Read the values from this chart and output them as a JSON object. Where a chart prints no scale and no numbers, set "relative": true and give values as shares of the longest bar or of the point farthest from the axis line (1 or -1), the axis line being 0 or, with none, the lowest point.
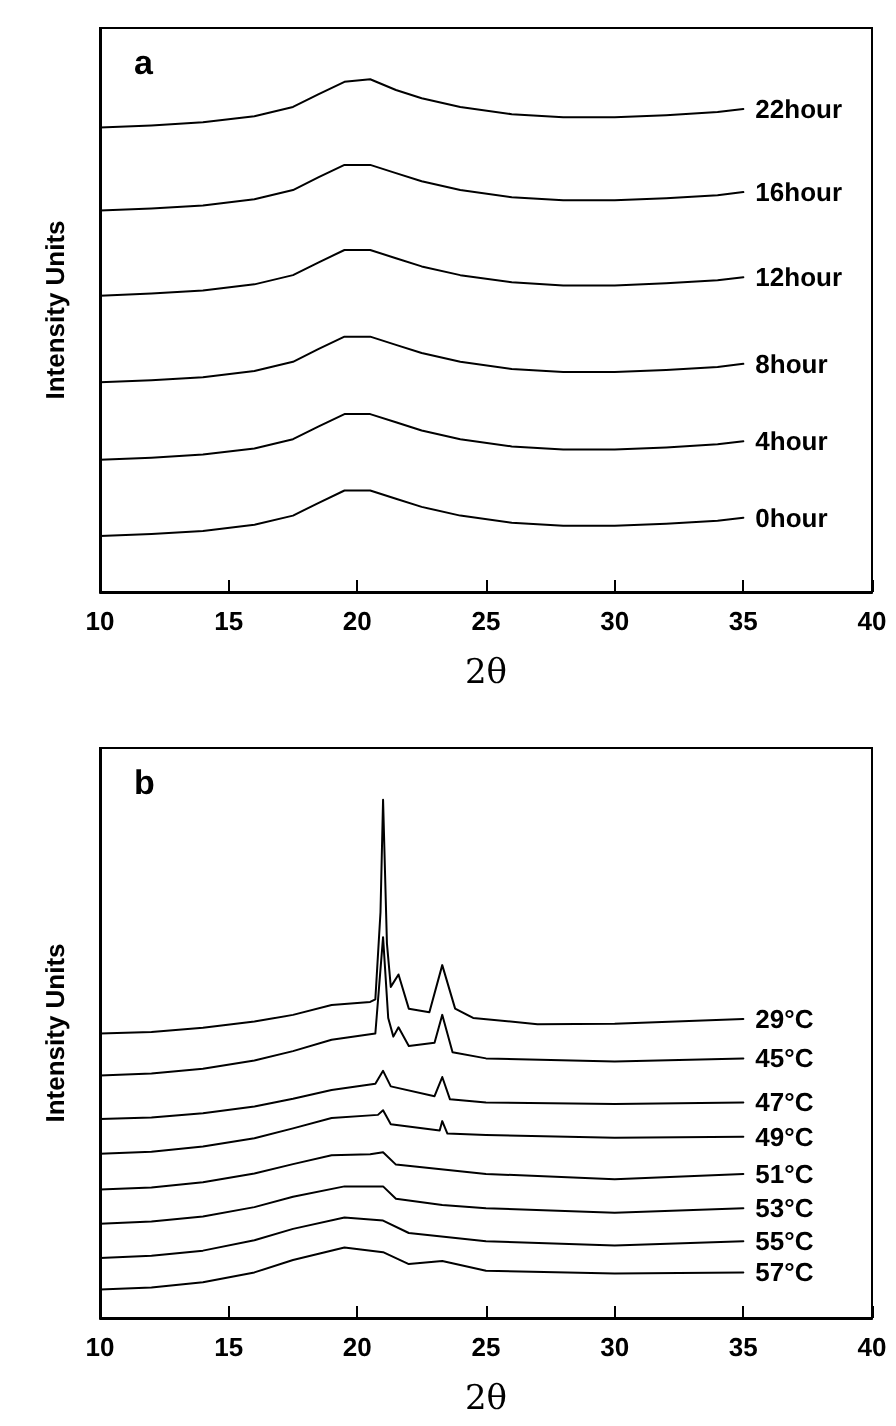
{
  "chart_data": [
    {
      "type": "line",
      "title": "a",
      "xlabel": "2θ",
      "ylabel": "Intensity Units",
      "relative": true,
      "xlim": [
        10,
        40
      ],
      "xticks": [
        10,
        15,
        20,
        25,
        30,
        35,
        40
      ],
      "grid": false,
      "legend": false,
      "marker": "none",
      "line_style": "solid",
      "series": [
        {
          "name": "22hour",
          "color": "#000000",
          "x": [
            10,
            12,
            14,
            16,
            17.5,
            18.5,
            19.5,
            20.5,
            21.5,
            22.5,
            24,
            26,
            28,
            30,
            32,
            34,
            35
          ],
          "values": [
            0.906,
            0.91,
            0.916,
            0.928,
            0.946,
            0.971,
            0.995,
            1.0,
            0.979,
            0.963,
            0.946,
            0.932,
            0.926,
            0.926,
            0.93,
            0.936,
            0.942
          ]
        },
        {
          "name": "16hour",
          "color": "#000000",
          "x": [
            10,
            12,
            14,
            16,
            17.5,
            18.5,
            19.5,
            20.5,
            21.5,
            22.5,
            24,
            26,
            28,
            30,
            32,
            34,
            35
          ],
          "values": [
            0.744,
            0.748,
            0.754,
            0.766,
            0.784,
            0.809,
            0.833,
            0.833,
            0.817,
            0.801,
            0.784,
            0.77,
            0.764,
            0.764,
            0.768,
            0.774,
            0.78
          ]
        },
        {
          "name": "12hour",
          "color": "#000000",
          "x": [
            10,
            12,
            14,
            16,
            17.5,
            18.5,
            19.5,
            20.5,
            21.5,
            22.5,
            24,
            26,
            28,
            30,
            32,
            34,
            35
          ],
          "values": [
            0.578,
            0.582,
            0.588,
            0.6,
            0.618,
            0.643,
            0.667,
            0.667,
            0.651,
            0.635,
            0.618,
            0.604,
            0.598,
            0.598,
            0.602,
            0.608,
            0.614
          ]
        },
        {
          "name": "8hour",
          "color": "#000000",
          "x": [
            10,
            12,
            14,
            16,
            17.5,
            18.5,
            19.5,
            20.5,
            21.5,
            22.5,
            24,
            26,
            28,
            30,
            32,
            34,
            35
          ],
          "values": [
            0.409,
            0.413,
            0.419,
            0.431,
            0.449,
            0.474,
            0.498,
            0.498,
            0.482,
            0.466,
            0.449,
            0.435,
            0.429,
            0.429,
            0.433,
            0.439,
            0.445
          ]
        },
        {
          "name": "4hour",
          "color": "#000000",
          "x": [
            10,
            12,
            14,
            16,
            17.5,
            18.5,
            19.5,
            20.5,
            21.5,
            22.5,
            24,
            26,
            28,
            30,
            32,
            34,
            35
          ],
          "values": [
            0.258,
            0.262,
            0.268,
            0.28,
            0.298,
            0.323,
            0.347,
            0.347,
            0.331,
            0.315,
            0.298,
            0.284,
            0.278,
            0.278,
            0.282,
            0.288,
            0.294
          ]
        },
        {
          "name": "0hour",
          "color": "#000000",
          "x": [
            10,
            12,
            14,
            16,
            17.5,
            18.5,
            19.5,
            20.5,
            21.5,
            22.5,
            24,
            26,
            28,
            30,
            32,
            34,
            35
          ],
          "values": [
            0.109,
            0.113,
            0.119,
            0.131,
            0.149,
            0.174,
            0.198,
            0.198,
            0.182,
            0.166,
            0.149,
            0.135,
            0.129,
            0.129,
            0.133,
            0.139,
            0.145
          ]
        }
      ]
    },
    {
      "type": "line",
      "title": "b",
      "xlabel": "2θ",
      "ylabel": "Intensity Units",
      "relative": true,
      "xlim": [
        10,
        40
      ],
      "xticks": [
        10,
        15,
        20,
        25,
        30,
        35,
        40
      ],
      "grid": false,
      "legend": false,
      "marker": "none",
      "line_style": "solid",
      "series": [
        {
          "name": "29°C",
          "color": "#000000",
          "x": [
            10,
            12,
            14,
            16,
            17.5,
            19,
            20.5,
            20.7,
            20.9,
            21.0,
            21.15,
            21.3,
            21.6,
            22,
            22.8,
            23.3,
            23.8,
            24.5,
            27,
            30,
            35
          ],
          "values": [
            0.549,
            0.552,
            0.56,
            0.572,
            0.585,
            0.604,
            0.61,
            0.615,
            0.783,
            1.0,
            0.723,
            0.639,
            0.663,
            0.597,
            0.59,
            0.681,
            0.597,
            0.579,
            0.567,
            0.568,
            0.577
          ]
        },
        {
          "name": "45°C",
          "color": "#000000",
          "x": [
            10,
            12,
            14,
            16,
            17.5,
            19,
            20.7,
            21.0,
            21.2,
            21.4,
            21.6,
            22,
            23,
            23.3,
            23.7,
            25,
            30,
            35
          ],
          "values": [
            0.468,
            0.472,
            0.481,
            0.497,
            0.515,
            0.537,
            0.549,
            0.735,
            0.579,
            0.543,
            0.561,
            0.525,
            0.531,
            0.585,
            0.513,
            0.501,
            0.495,
            0.501
          ]
        },
        {
          "name": "47°C",
          "color": "#000000",
          "x": [
            10,
            12,
            14,
            16,
            17.5,
            19,
            20.7,
            21.0,
            21.3,
            23,
            23.3,
            23.6,
            25,
            30,
            35
          ],
          "values": [
            0.384,
            0.387,
            0.395,
            0.408,
            0.423,
            0.44,
            0.452,
            0.477,
            0.447,
            0.428,
            0.465,
            0.422,
            0.416,
            0.413,
            0.416
          ]
        },
        {
          "name": "49°C",
          "color": "#000000",
          "x": [
            10,
            12,
            14,
            16,
            17.5,
            19,
            20.8,
            21.0,
            21.3,
            23.2,
            23.3,
            23.5,
            25,
            30,
            35
          ],
          "values": [
            0.317,
            0.321,
            0.331,
            0.347,
            0.366,
            0.386,
            0.392,
            0.401,
            0.374,
            0.362,
            0.38,
            0.356,
            0.353,
            0.348,
            0.35
          ]
        },
        {
          "name": "51°C",
          "color": "#000000",
          "x": [
            10,
            12,
            14,
            16,
            17.5,
            19,
            20.5,
            21.0,
            21.5,
            25,
            30,
            35
          ],
          "values": [
            0.248,
            0.252,
            0.262,
            0.279,
            0.297,
            0.314,
            0.316,
            0.32,
            0.296,
            0.278,
            0.268,
            0.278
          ]
        },
        {
          "name": "53°C",
          "color": "#000000",
          "x": [
            10,
            12,
            14,
            16,
            17.5,
            19.5,
            21.0,
            21.5,
            23.3,
            25,
            30,
            35
          ],
          "values": [
            0.182,
            0.186,
            0.196,
            0.214,
            0.234,
            0.254,
            0.254,
            0.23,
            0.218,
            0.212,
            0.203,
            0.212
          ]
        },
        {
          "name": "55°C",
          "color": "#000000",
          "x": [
            10,
            12,
            14,
            16,
            17.5,
            19.5,
            21.0,
            22,
            25,
            30,
            35
          ],
          "values": [
            0.116,
            0.12,
            0.13,
            0.15,
            0.172,
            0.194,
            0.188,
            0.164,
            0.148,
            0.14,
            0.148
          ]
        },
        {
          "name": "57°C",
          "color": "#000000",
          "x": [
            10,
            12,
            14,
            16,
            17.5,
            19.5,
            21.0,
            22,
            23.3,
            25,
            30,
            35
          ],
          "values": [
            0.055,
            0.059,
            0.069,
            0.088,
            0.112,
            0.136,
            0.127,
            0.104,
            0.11,
            0.091,
            0.086,
            0.088
          ]
        }
      ]
    }
  ]
}
